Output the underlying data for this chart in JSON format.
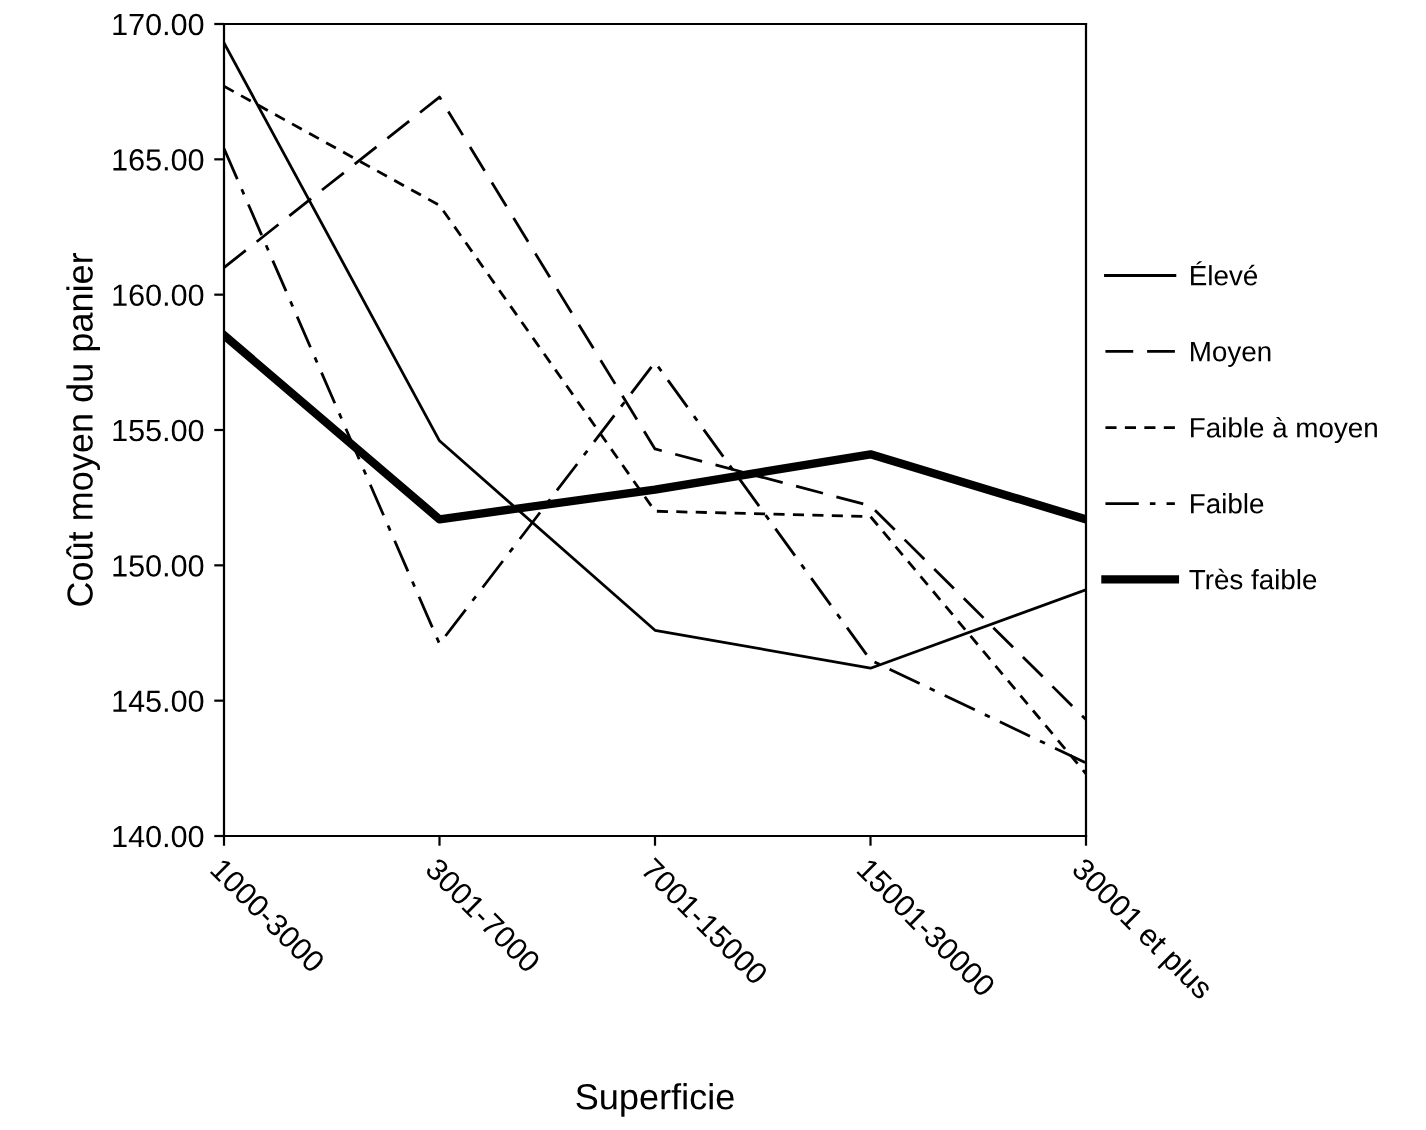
{
  "chart_data": {
    "type": "line",
    "xlabel": "Superficie",
    "ylabel": "Coût moyen du panier",
    "categories": [
      "1000-3000",
      "3001-7000",
      "7001-15000",
      "15001-30000",
      "30001 et plus"
    ],
    "ylim": [
      140,
      170
    ],
    "yticks": [
      {
        "value": 140,
        "label": "140.00"
      },
      {
        "value": 145,
        "label": "145.00"
      },
      {
        "value": 150,
        "label": "150.00"
      },
      {
        "value": 155,
        "label": "155.00"
      },
      {
        "value": 160,
        "label": "160.00"
      },
      {
        "value": 165,
        "label": "165.00"
      },
      {
        "value": 170,
        "label": "170.00"
      }
    ],
    "grid": false,
    "legend": "right",
    "series": [
      {
        "name": "Élevé",
        "color": "#000000",
        "line_style": "solid",
        "values": [
          169.3,
          154.6,
          147.6,
          146.2,
          149.1
        ]
      },
      {
        "name": "Moyen",
        "color": "#000000",
        "line_style": "dashed",
        "values": [
          161.0,
          167.3,
          154.3,
          152.2,
          144.3
        ]
      },
      {
        "name": "Faible à moyen",
        "color": "#000000",
        "line_style": "dotted",
        "values": [
          167.7,
          163.3,
          152.0,
          151.8,
          142.3
        ]
      },
      {
        "name": "Faible",
        "color": "#000000",
        "line_style": "dashdot",
        "values": [
          165.4,
          147.1,
          157.5,
          146.5,
          142.7
        ]
      },
      {
        "name": "Très faible",
        "color": "#000000",
        "line_style": "solid",
        "values": [
          158.5,
          151.7,
          152.8,
          154.1,
          151.7
        ]
      }
    ]
  }
}
